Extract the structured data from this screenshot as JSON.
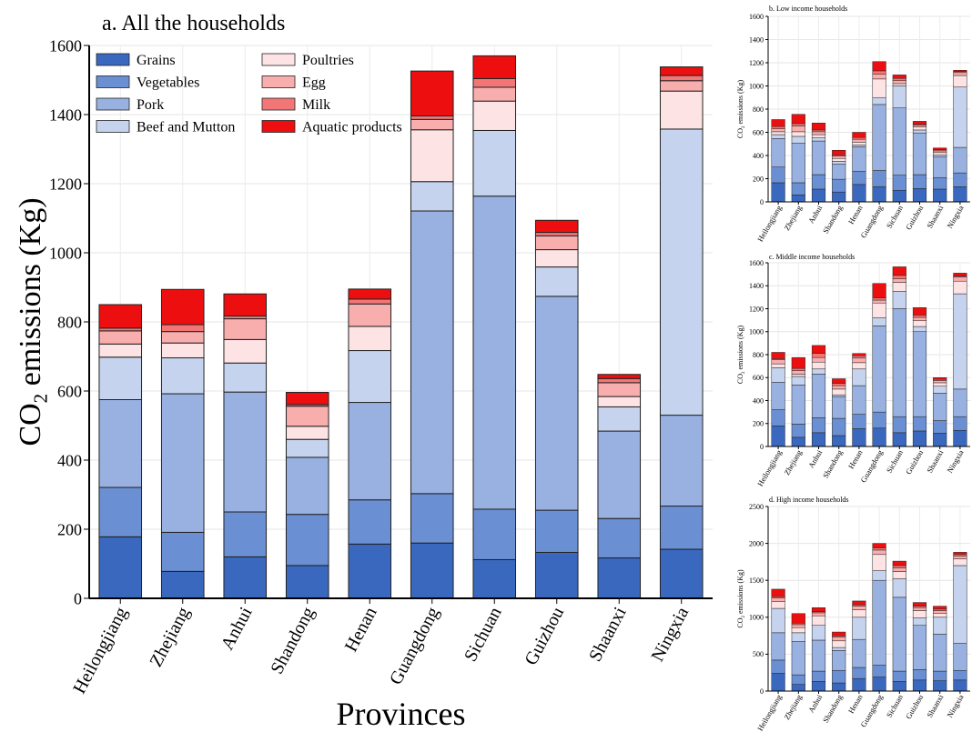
{
  "colors": {
    "Grains": "#3a68bf",
    "Vegetables": "#6a8fd3",
    "Pork": "#98b1e1",
    "Beef and Mutton": "#c5d3ee",
    "Poultries": "#fde3e3",
    "Egg": "#f9aeae",
    "Milk": "#f27676",
    "Aquatic products": "#ed0f0f"
  },
  "chart_data": [
    {
      "type": "bar",
      "stacked": true,
      "title": "a. All the households",
      "xlabel": "Provinces",
      "ylabel": "CO",
      "ylabel_sub": "2",
      "ylabel_rest": " emissions (Kg)",
      "ylim": [
        0,
        1600
      ],
      "yticks": [
        0,
        200,
        400,
        600,
        800,
        1000,
        1200,
        1400,
        1600
      ],
      "ytick_labels": [
        "0",
        "200",
        "400",
        "600",
        "800",
        "1000",
        "1200",
        "1400",
        "1600"
      ],
      "grid": true,
      "legend": "top-left",
      "categories": [
        "Heilongjiang",
        "Zhejiang",
        "Anhui",
        "Shandong",
        "Henan",
        "Guangdong",
        "Sichuan",
        "Guizhou",
        "Shaanxi",
        "Ningxia"
      ],
      "series": [
        {
          "name": "Grains",
          "values": [
            178,
            78,
            120,
            95,
            157,
            160,
            112,
            133,
            117,
            142
          ]
        },
        {
          "name": "Vegetables",
          "values": [
            143,
            113,
            130,
            148,
            128,
            143,
            146,
            122,
            114,
            125
          ]
        },
        {
          "name": "Pork",
          "values": [
            254,
            401,
            347,
            165,
            282,
            818,
            906,
            619,
            253,
            263
          ]
        },
        {
          "name": "Beef and Mutton",
          "values": [
            123,
            104,
            84,
            52,
            150,
            85,
            190,
            85,
            70,
            828
          ]
        },
        {
          "name": "Poultries",
          "values": [
            38,
            43,
            68,
            38,
            70,
            150,
            85,
            50,
            30,
            110
          ]
        },
        {
          "name": "Egg",
          "values": [
            38,
            33,
            60,
            58,
            65,
            30,
            40,
            40,
            40,
            30
          ]
        },
        {
          "name": "Milk",
          "values": [
            8,
            20,
            8,
            5,
            14,
            10,
            25,
            10,
            12,
            15
          ]
        },
        {
          "name": "Aquatic products",
          "values": [
            68,
            102,
            64,
            35,
            29,
            130,
            66,
            35,
            12,
            25
          ]
        }
      ]
    },
    {
      "type": "bar",
      "stacked": true,
      "title": "b. Low income households",
      "ylabel": "CO",
      "ylabel_sub": "2",
      "ylabel_rest": " emissions (Kg)",
      "ylim": [
        0,
        1600
      ],
      "yticks": [
        0,
        200,
        400,
        600,
        800,
        1000,
        1200,
        1400,
        1600
      ],
      "ytick_labels": [
        "0",
        "200",
        "400",
        "600",
        "800",
        "1000",
        "1200",
        "1400",
        "1600"
      ],
      "grid": true,
      "categories": [
        "Heilongjiang",
        "Zhejiang",
        "Anhui",
        "Shandong",
        "Henan",
        "Guangdong",
        "Sichuan",
        "Guizhou",
        "Shaanxi",
        "Ningxia"
      ],
      "series": [
        {
          "name": "Grains",
          "values": [
            165,
            60,
            110,
            85,
            150,
            130,
            100,
            115,
            110,
            130
          ]
        },
        {
          "name": "Vegetables",
          "values": [
            135,
            105,
            125,
            110,
            115,
            140,
            130,
            120,
            100,
            120
          ]
        },
        {
          "name": "Pork",
          "values": [
            245,
            340,
            290,
            130,
            210,
            570,
            580,
            360,
            180,
            220
          ]
        },
        {
          "name": "Beef and Mutton",
          "values": [
            35,
            60,
            30,
            25,
            15,
            60,
            190,
            25,
            15,
            520
          ]
        },
        {
          "name": "Poultries",
          "values": [
            25,
            40,
            25,
            25,
            25,
            160,
            20,
            25,
            20,
            100
          ]
        },
        {
          "name": "Egg",
          "values": [
            25,
            50,
            25,
            20,
            25,
            40,
            25,
            15,
            15,
            25
          ]
        },
        {
          "name": "Milk",
          "values": [
            20,
            20,
            15,
            10,
            15,
            30,
            20,
            10,
            10,
            10
          ]
        },
        {
          "name": "Aquatic products",
          "values": [
            60,
            80,
            60,
            40,
            45,
            80,
            30,
            25,
            15,
            10
          ]
        }
      ]
    },
    {
      "type": "bar",
      "stacked": true,
      "title": "c. Middle income households",
      "ylabel": "CO",
      "ylabel_sub": "2",
      "ylabel_rest": " emissions (Kg)",
      "ylim": [
        0,
        1600
      ],
      "yticks": [
        0,
        200,
        400,
        600,
        800,
        1000,
        1200,
        1400,
        1600
      ],
      "ytick_labels": [
        "0",
        "200",
        "400",
        "600",
        "800",
        "1000",
        "1200",
        "1400",
        "1600"
      ],
      "grid": true,
      "categories": [
        "Heilongjiang",
        "Zhejiang",
        "Anhui",
        "Shandong",
        "Henan",
        "Guangdong",
        "Sichuan",
        "Guizhou",
        "Shaanxi",
        "Ningxia"
      ],
      "series": [
        {
          "name": "Grains",
          "values": [
            180,
            80,
            120,
            95,
            155,
            160,
            120,
            135,
            115,
            140
          ]
        },
        {
          "name": "Vegetables",
          "values": [
            140,
            115,
            130,
            150,
            125,
            140,
            140,
            125,
            110,
            120
          ]
        },
        {
          "name": "Pork",
          "values": [
            240,
            340,
            380,
            190,
            250,
            750,
            940,
            740,
            240,
            240
          ]
        },
        {
          "name": "Beef and Mutton",
          "values": [
            125,
            75,
            45,
            15,
            145,
            70,
            150,
            45,
            60,
            830
          ]
        },
        {
          "name": "Poultries",
          "values": [
            35,
            20,
            60,
            50,
            55,
            130,
            80,
            50,
            30,
            110
          ]
        },
        {
          "name": "Egg",
          "values": [
            35,
            30,
            40,
            30,
            40,
            25,
            30,
            30,
            20,
            35
          ]
        },
        {
          "name": "Milk",
          "values": [
            10,
            20,
            35,
            20,
            20,
            20,
            30,
            20,
            10,
            10
          ]
        },
        {
          "name": "Aquatic products",
          "values": [
            55,
            95,
            70,
            40,
            20,
            125,
            75,
            65,
            15,
            25
          ]
        }
      ]
    },
    {
      "type": "bar",
      "stacked": true,
      "title": "d. High income households",
      "ylabel": "CO",
      "ylabel_sub": "2",
      "ylabel_rest": " emissions (Kg)",
      "ylim": [
        0,
        2500
      ],
      "yticks": [
        0,
        500,
        1000,
        1500,
        2000,
        2500
      ],
      "ytick_labels": [
        "0",
        "500",
        "1000",
        "1500",
        "2000",
        "2500"
      ],
      "grid": true,
      "categories": [
        "Heilongjiang",
        "Zhejiang",
        "Anhui",
        "Shandong",
        "Henan",
        "Guangdong",
        "Sichuan",
        "Guizhou",
        "Shaanxi",
        "Ningxia"
      ],
      "series": [
        {
          "name": "Grains",
          "values": [
            240,
            90,
            130,
            110,
            170,
            190,
            130,
            150,
            140,
            150
          ]
        },
        {
          "name": "Vegetables",
          "values": [
            180,
            130,
            140,
            170,
            150,
            160,
            140,
            140,
            130,
            130
          ]
        },
        {
          "name": "Pork",
          "values": [
            370,
            450,
            420,
            270,
            380,
            1150,
            1000,
            600,
            500,
            370
          ]
        },
        {
          "name": "Beef and Mutton",
          "values": [
            330,
            120,
            200,
            40,
            300,
            130,
            250,
            100,
            230,
            1050
          ]
        },
        {
          "name": "Poultries",
          "values": [
            90,
            70,
            130,
            90,
            100,
            220,
            100,
            100,
            50,
            90
          ]
        },
        {
          "name": "Egg",
          "values": [
            50,
            40,
            40,
            50,
            50,
            60,
            50,
            40,
            40,
            40
          ]
        },
        {
          "name": "Milk",
          "values": [
            20,
            20,
            15,
            20,
            20,
            30,
            30,
            20,
            20,
            20
          ]
        },
        {
          "name": "Aquatic products",
          "values": [
            100,
            130,
            55,
            50,
            50,
            60,
            60,
            50,
            40,
            30
          ]
        }
      ]
    }
  ]
}
